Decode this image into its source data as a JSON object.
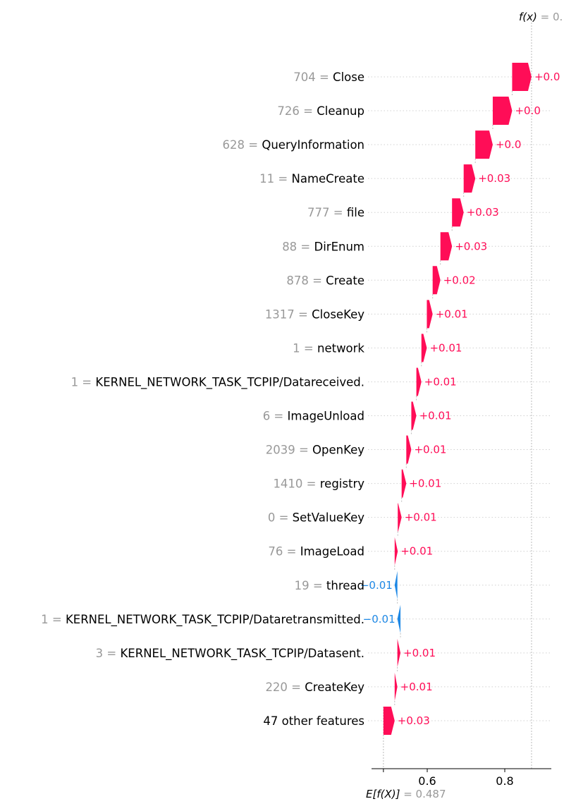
{
  "chart_data": {
    "type": "waterfall",
    "colors": {
      "positive": "#ff0d57",
      "negative": "#1e88e5",
      "text_positive": "#ff0d57",
      "text_negative": "#1e88e5",
      "value_text": "#999999"
    },
    "base_value": 0.487,
    "base_label": "E[f(X)] = 0.487",
    "output_label": "f(x) = 0.",
    "xticks": [
      0.6,
      0.8
    ],
    "xtick_labels": [
      "0.6",
      "0.8"
    ],
    "grid": "dotted horizontal row lines",
    "features": [
      {
        "value": "704",
        "name": "Close",
        "contribution": 0.05,
        "label": "+0.0"
      },
      {
        "value": "726",
        "name": "Cleanup",
        "contribution": 0.05,
        "label": "+0.0"
      },
      {
        "value": "628",
        "name": "QueryInformation",
        "contribution": 0.045,
        "label": "+0.0"
      },
      {
        "value": "11",
        "name": "NameCreate",
        "contribution": 0.03,
        "label": "+0.03"
      },
      {
        "value": "777",
        "name": "file",
        "contribution": 0.03,
        "label": "+0.03"
      },
      {
        "value": "88",
        "name": "DirEnum",
        "contribution": 0.03,
        "label": "+0.03"
      },
      {
        "value": "878",
        "name": "Create",
        "contribution": 0.02,
        "label": "+0.02"
      },
      {
        "value": "1317",
        "name": "CloseKey",
        "contribution": 0.015,
        "label": "+0.01"
      },
      {
        "value": "1",
        "name": "network",
        "contribution": 0.014,
        "label": "+0.01"
      },
      {
        "value": "1",
        "name": "KERNEL_NETWORK_TASK_TCPIP/Datareceived.",
        "contribution": 0.013,
        "label": "+0.01"
      },
      {
        "value": "6",
        "name": "ImageUnload",
        "contribution": 0.013,
        "label": "+0.01"
      },
      {
        "value": "2039",
        "name": "OpenKey",
        "contribution": 0.013,
        "label": "+0.01"
      },
      {
        "value": "1410",
        "name": "registry",
        "contribution": 0.012,
        "label": "+0.01"
      },
      {
        "value": "0",
        "name": "SetValueKey",
        "contribution": 0.01,
        "label": "+0.01"
      },
      {
        "value": "76",
        "name": "ImageLoad",
        "contribution": 0.008,
        "label": "+0.01"
      },
      {
        "value": "19",
        "name": "thread",
        "contribution": -0.007,
        "label": "−0.01"
      },
      {
        "value": "1",
        "name": "KERNEL_NETWORK_TASK_TCPIP/Dataretransmitted.",
        "contribution": -0.008,
        "label": "−0.01"
      },
      {
        "value": "3",
        "name": "KERNEL_NETWORK_TASK_TCPIP/Datasent.",
        "contribution": 0.008,
        "label": "+0.01"
      },
      {
        "value": "220",
        "name": "CreateKey",
        "contribution": 0.007,
        "label": "+0.01"
      },
      {
        "value": "",
        "name": "47 other features",
        "contribution": 0.029,
        "label": "+0.03"
      }
    ]
  }
}
